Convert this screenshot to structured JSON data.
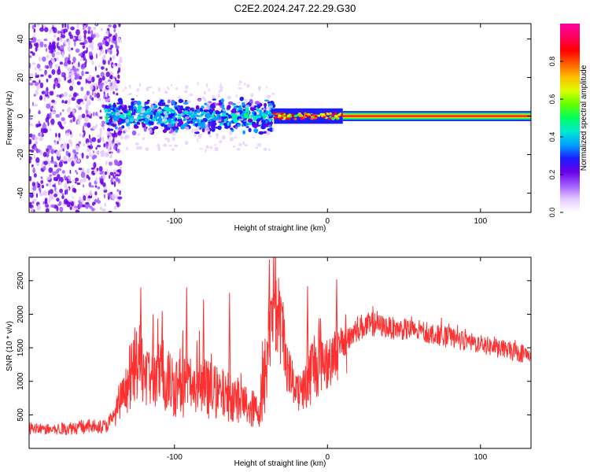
{
  "title": "C2E2.2024.247.22.29.G30",
  "chart_data": [
    {
      "type": "heatmap",
      "xlabel": "Height of straight line (km)",
      "ylabel": "Frequency (Hz)",
      "xlim": [
        -195,
        133
      ],
      "ylim": [
        -50,
        48
      ],
      "xticks": [
        -100,
        0,
        100
      ],
      "yticks": [
        -40,
        -20,
        0,
        20,
        40
      ],
      "colorbar": {
        "label": "Normalized spectral amplitude",
        "range": [
          0.0,
          1.0
        ],
        "ticks": [
          0.0,
          0.2,
          0.4,
          0.6,
          0.8
        ],
        "colors": [
          "#ffffff",
          "#e4c8ff",
          "#a05cff",
          "#6a00e8",
          "#1c1cff",
          "#00a0ff",
          "#00e8d0",
          "#00ff60",
          "#60ff00",
          "#d8ff00",
          "#ffc000",
          "#ff6000",
          "#ff0000",
          "#ff0060",
          "#ff00a0"
        ]
      },
      "regions": [
        {
          "x": [
            -195,
            -135
          ],
          "freq": [
            -50,
            48
          ],
          "amplitude": 0.2
        },
        {
          "x": [
            -145,
            -35
          ],
          "freq": [
            -8,
            8
          ],
          "amplitude": 0.35
        },
        {
          "x": [
            -35,
            10
          ],
          "freq": [
            -3,
            3
          ],
          "amplitude": 0.8
        },
        {
          "x": [
            10,
            133
          ],
          "freq": [
            -1.5,
            1.5
          ],
          "amplitude": 0.95
        }
      ]
    },
    {
      "type": "line",
      "xlabel": "Height of straight line (km)",
      "ylabel": "SNR (10 * v/v)",
      "xlim": [
        -195,
        133
      ],
      "ylim": [
        0,
        2850
      ],
      "xticks": [
        -100,
        0,
        100
      ],
      "yticks": [
        500,
        1000,
        1500,
        2000,
        2500
      ],
      "series": [
        {
          "color": "#ff3030",
          "x": [
            -195,
            -180,
            -160,
            -145,
            -140,
            -130,
            -125,
            -120,
            -115,
            -110,
            -100,
            -95,
            -90,
            -80,
            -70,
            -60,
            -50,
            -45,
            -40,
            -36,
            -33,
            -30,
            -25,
            -20,
            -15,
            -10,
            -5,
            0,
            10,
            20,
            30,
            40,
            60,
            80,
            100,
            120,
            133
          ],
          "values": [
            300,
            280,
            320,
            330,
            450,
            950,
            1300,
            1200,
            1000,
            1100,
            950,
            1000,
            950,
            900,
            800,
            750,
            600,
            550,
            1200,
            2300,
            2000,
            1800,
            1100,
            900,
            900,
            1200,
            1400,
            1300,
            1550,
            1800,
            1850,
            1800,
            1750,
            1650,
            1550,
            1450,
            1400
          ],
          "envelope": [
            90,
            80,
            110,
            100,
            150,
            400,
            600,
            550,
            450,
            500,
            500,
            550,
            450,
            450,
            400,
            350,
            300,
            250,
            700,
            800,
            700,
            600,
            400,
            350,
            350,
            550,
            600,
            450,
            250,
            200,
            180,
            160,
            160,
            150,
            140,
            140,
            140
          ],
          "peaks": [
            {
              "x": -122,
              "y": 2400
            },
            {
              "x": -114,
              "y": 2000
            },
            {
              "x": -108,
              "y": 2050
            },
            {
              "x": -92,
              "y": 2400
            },
            {
              "x": -81,
              "y": 2220
            },
            {
              "x": -64,
              "y": 2320
            },
            {
              "x": -38,
              "y": 2820
            },
            {
              "x": -34,
              "y": 2480
            },
            {
              "x": -29,
              "y": 2180
            },
            {
              "x": -13,
              "y": 2420
            },
            {
              "x": 6,
              "y": 2520
            },
            {
              "x": 12,
              "y": 2000
            }
          ]
        }
      ]
    }
  ]
}
